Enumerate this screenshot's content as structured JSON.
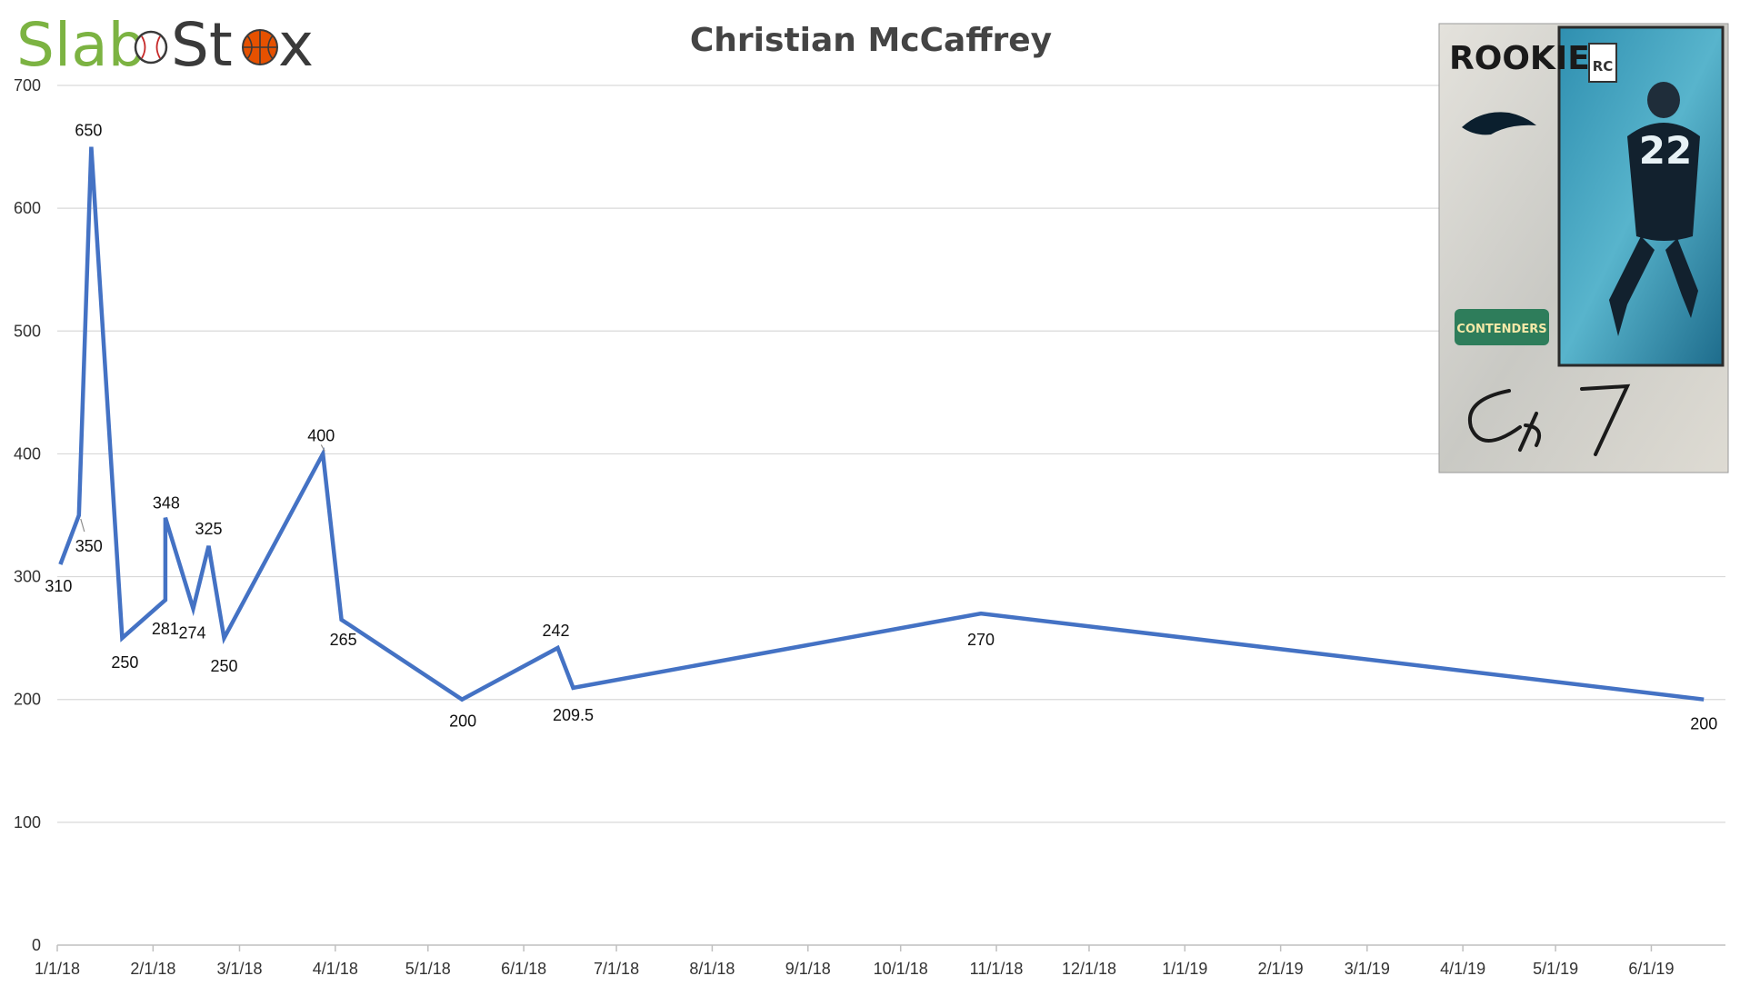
{
  "logo": {
    "part1": "Slab",
    "part2": "St",
    "part3": "x",
    "brand_green": "#7cb342",
    "brand_dark": "#3a3a3a"
  },
  "card": {
    "rookie_text": "ROOKIE",
    "rc_badge": "RC",
    "jersey_number": "22",
    "brand_text": "CONTENDERS"
  },
  "chart_data": {
    "type": "line",
    "title": "Christian McCaffrey",
    "xlabel": "",
    "ylabel": "",
    "ylim": [
      0,
      700
    ],
    "yticks": [
      0,
      100,
      200,
      300,
      400,
      500,
      600,
      700
    ],
    "xticks": [
      "1/1/18",
      "2/1/18",
      "3/1/18",
      "4/1/18",
      "5/1/18",
      "6/1/18",
      "7/1/18",
      "8/1/18",
      "9/1/18",
      "10/1/18",
      "11/1/18",
      "12/1/18",
      "1/1/19",
      "2/1/19",
      "3/1/19",
      "4/1/19",
      "5/1/19",
      "6/1/19"
    ],
    "grid": true,
    "line_color": "#4472c4",
    "series": [
      {
        "points": [
          {
            "x": "2018-01-02",
            "y": 310,
            "label": "310"
          },
          {
            "x": "2018-01-08",
            "y": 350,
            "label": "350"
          },
          {
            "x": "2018-01-12",
            "y": 650,
            "label": "650"
          },
          {
            "x": "2018-01-22",
            "y": 250,
            "label": "250"
          },
          {
            "x": "2018-02-05",
            "y": 281,
            "label": "281"
          },
          {
            "x": "2018-02-05",
            "y": 348,
            "label": "348"
          },
          {
            "x": "2018-02-14",
            "y": 274,
            "label": "274"
          },
          {
            "x": "2018-02-19",
            "y": 325,
            "label": "325"
          },
          {
            "x": "2018-02-24",
            "y": 250,
            "label": "250"
          },
          {
            "x": "2018-03-28",
            "y": 400,
            "label": "400"
          },
          {
            "x": "2018-04-03",
            "y": 265,
            "label": "265"
          },
          {
            "x": "2018-05-12",
            "y": 200,
            "label": "200"
          },
          {
            "x": "2018-06-12",
            "y": 242,
            "label": "242"
          },
          {
            "x": "2018-06-17",
            "y": 209.5,
            "label": "209.5"
          },
          {
            "x": "2018-10-27",
            "y": 270,
            "label": "270"
          },
          {
            "x": "2019-06-18",
            "y": 200,
            "label": "200"
          }
        ]
      }
    ]
  }
}
